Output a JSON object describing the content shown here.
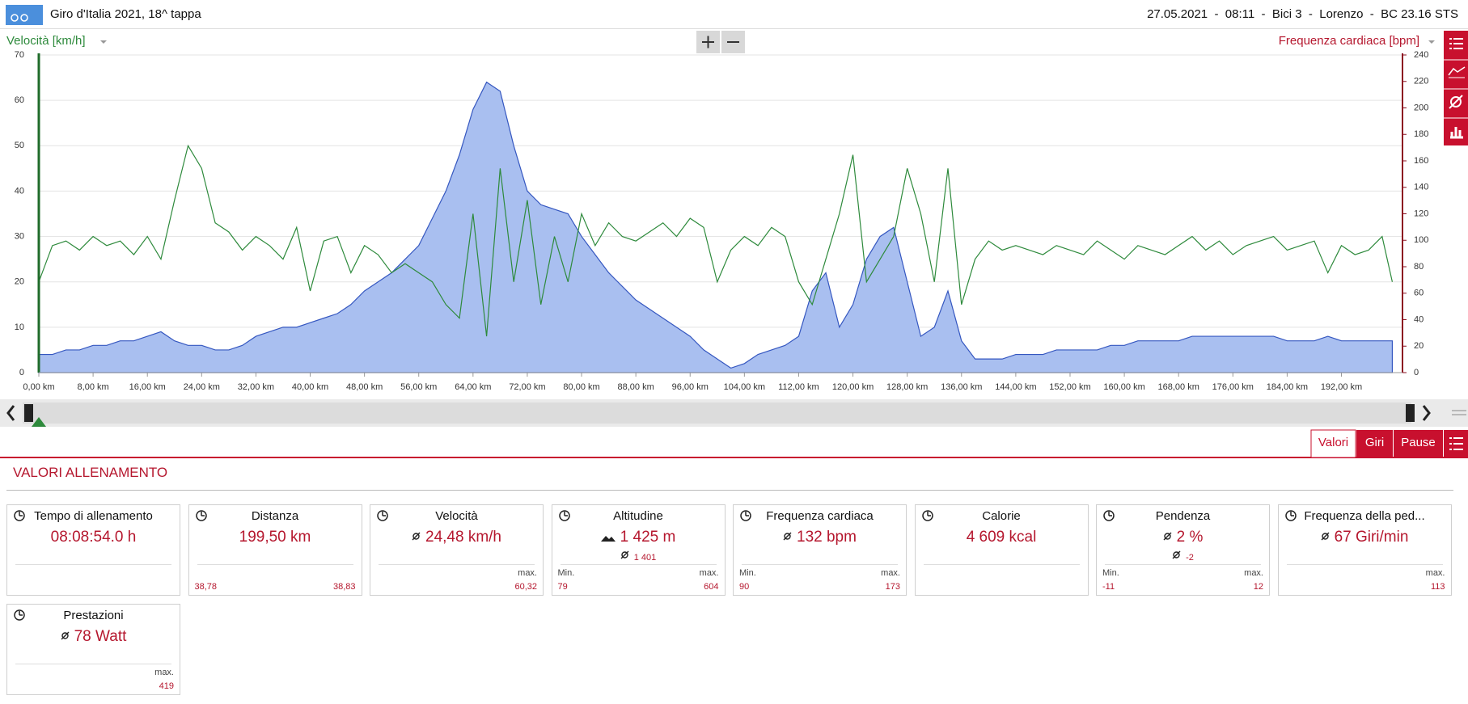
{
  "header": {
    "title": "Giro d'Italia 2021, 18^ tappa",
    "info": "27.05.2021  -  08:11  -  Bici 3  -  Lorenzo  -  BC 23.16 STS"
  },
  "chart_data": {
    "type": "line",
    "y_label": "Velocità [km/h]",
    "y2_label": "Frequenza cardiaca [bpm]",
    "x": [
      0,
      2,
      4,
      6,
      8,
      10,
      12,
      14,
      16,
      18,
      20,
      22,
      24,
      26,
      28,
      30,
      32,
      34,
      36,
      38,
      40,
      42,
      44,
      46,
      48,
      50,
      52,
      54,
      56,
      58,
      60,
      62,
      64,
      66,
      68,
      70,
      72,
      74,
      76,
      78,
      80,
      82,
      84,
      86,
      88,
      90,
      92,
      94,
      96,
      98,
      100,
      102,
      104,
      106,
      108,
      110,
      112,
      114,
      116,
      118,
      120,
      122,
      124,
      126,
      128,
      130,
      132,
      134,
      136,
      138,
      140,
      142,
      144,
      146,
      148,
      150,
      152,
      154,
      156,
      158,
      160,
      162,
      164,
      166,
      168,
      170,
      172,
      174,
      176,
      178,
      180,
      182,
      184,
      186,
      188,
      190,
      192,
      194,
      196,
      198,
      199.5
    ],
    "series": [
      {
        "type": "area",
        "color": "#a9bff0",
        "values": [
          4,
          4,
          5,
          5,
          6,
          6,
          7,
          7,
          8,
          9,
          7,
          6,
          6,
          5,
          5,
          6,
          8,
          9,
          10,
          10,
          11,
          12,
          13,
          15,
          18,
          20,
          22,
          25,
          28,
          34,
          40,
          48,
          58,
          64,
          62,
          50,
          40,
          37,
          36,
          35,
          30,
          26,
          22,
          19,
          16,
          14,
          12,
          10,
          8,
          5,
          3,
          1,
          2,
          4,
          5,
          6,
          8,
          18,
          22,
          10,
          15,
          25,
          30,
          32,
          20,
          8,
          10,
          18,
          7,
          3,
          3,
          3,
          4,
          4,
          4,
          5,
          5,
          5,
          5,
          6,
          6,
          7,
          7,
          7,
          7,
          8,
          8,
          8,
          8,
          8,
          8,
          8,
          7,
          7,
          7,
          8,
          7,
          7,
          7,
          7,
          7
        ]
      },
      {
        "type": "line",
        "color": "#2e8a3c",
        "values": [
          20,
          28,
          29,
          27,
          30,
          28,
          29,
          26,
          30,
          25,
          38,
          50,
          45,
          33,
          31,
          27,
          30,
          28,
          25,
          32,
          18,
          29,
          30,
          22,
          28,
          26,
          22,
          24,
          22,
          20,
          15,
          12,
          35,
          8,
          45,
          20,
          38,
          15,
          30,
          20,
          35,
          28,
          33,
          30,
          29,
          31,
          33,
          30,
          34,
          32,
          20,
          27,
          30,
          28,
          32,
          30,
          20,
          15,
          25,
          35,
          48,
          20,
          25,
          30,
          45,
          35,
          20,
          45,
          15,
          25,
          29,
          27,
          28,
          27,
          26,
          28,
          27,
          26,
          29,
          27,
          25,
          28,
          27,
          26,
          28,
          30,
          27,
          29,
          26,
          28,
          29,
          30,
          27,
          28,
          29,
          22,
          28,
          26,
          27,
          30,
          20
        ]
      }
    ],
    "xlim": [
      0,
      201
    ],
    "xticks": [
      {
        "value": 0,
        "label": "0,00 km"
      },
      {
        "value": 8,
        "label": "8,00 km"
      },
      {
        "value": 16,
        "label": "16,00 km"
      },
      {
        "value": 24,
        "label": "24,00 km"
      },
      {
        "value": 32,
        "label": "32,00 km"
      },
      {
        "value": 40,
        "label": "40,00 km"
      },
      {
        "value": 48,
        "label": "48,00 km"
      },
      {
        "value": 56,
        "label": "56,00 km"
      },
      {
        "value": 64,
        "label": "64,00 km"
      },
      {
        "value": 72,
        "label": "72,00 km"
      },
      {
        "value": 80,
        "label": "80,00 km"
      },
      {
        "value": 88,
        "label": "88,00 km"
      },
      {
        "value": 96,
        "label": "96,00 km"
      },
      {
        "value": 104,
        "label": "104,00 km"
      },
      {
        "value": 112,
        "label": "112,00 km"
      },
      {
        "value": 120,
        "label": "120,00 km"
      },
      {
        "value": 128,
        "label": "128,00 km"
      },
      {
        "value": 136,
        "label": "136,00 km"
      },
      {
        "value": 144,
        "label": "144,00 km"
      },
      {
        "value": 152,
        "label": "152,00 km"
      },
      {
        "value": 160,
        "label": "160,00 km"
      },
      {
        "value": 168,
        "label": "168,00 km"
      },
      {
        "value": 176,
        "label": "176,00 km"
      },
      {
        "value": 184,
        "label": "184,00 km"
      },
      {
        "value": 192,
        "label": "192,00 km"
      }
    ],
    "ylim": [
      0,
      70
    ],
    "yticks": [
      0,
      10,
      20,
      30,
      40,
      50,
      60,
      70
    ],
    "y2lim": [
      0,
      240
    ],
    "y2ticks": [
      0,
      20,
      40,
      60,
      80,
      100,
      120,
      140,
      160,
      180,
      200,
      220,
      240
    ],
    "grid": true
  },
  "tabs": [
    "Valori",
    "Giri",
    "Pause"
  ],
  "section_title": "VALORI ALLENAMENTO",
  "cards": [
    {
      "title": "Tempo di allenamento",
      "value": "08:08:54.0 h"
    },
    {
      "title": "Distanza",
      "value": "199,50 km",
      "left_value": "38,78",
      "right_value": "38,83"
    },
    {
      "title": "Velocità",
      "value": "24,48 km/h",
      "right_label": "max.",
      "right_value": "60,32"
    },
    {
      "title": "Altitudine",
      "value": "1 425 m",
      "sub_value": "1 401",
      "left_label": "Min.",
      "left_value": "79",
      "right_label": "max.",
      "right_value": "604"
    },
    {
      "title": "Frequenza cardiaca",
      "value": "132 bpm",
      "left_label": "Min.",
      "left_value": "90",
      "right_label": "max.",
      "right_value": "173"
    },
    {
      "title": "Calorie",
      "value": "4 609 kcal"
    },
    {
      "title": "Pendenza",
      "value": "2 %",
      "sub_value": "-2",
      "left_label": "Min.",
      "left_value": "-11",
      "right_label": "max.",
      "right_value": "12"
    },
    {
      "title": "Frequenza della ped...",
      "value": "67 Giri/min",
      "right_label": "max.",
      "right_value": "113"
    },
    {
      "title": "Prestazioni",
      "value": "78 Watt",
      "right_label": "max.",
      "right_value": "419"
    }
  ]
}
